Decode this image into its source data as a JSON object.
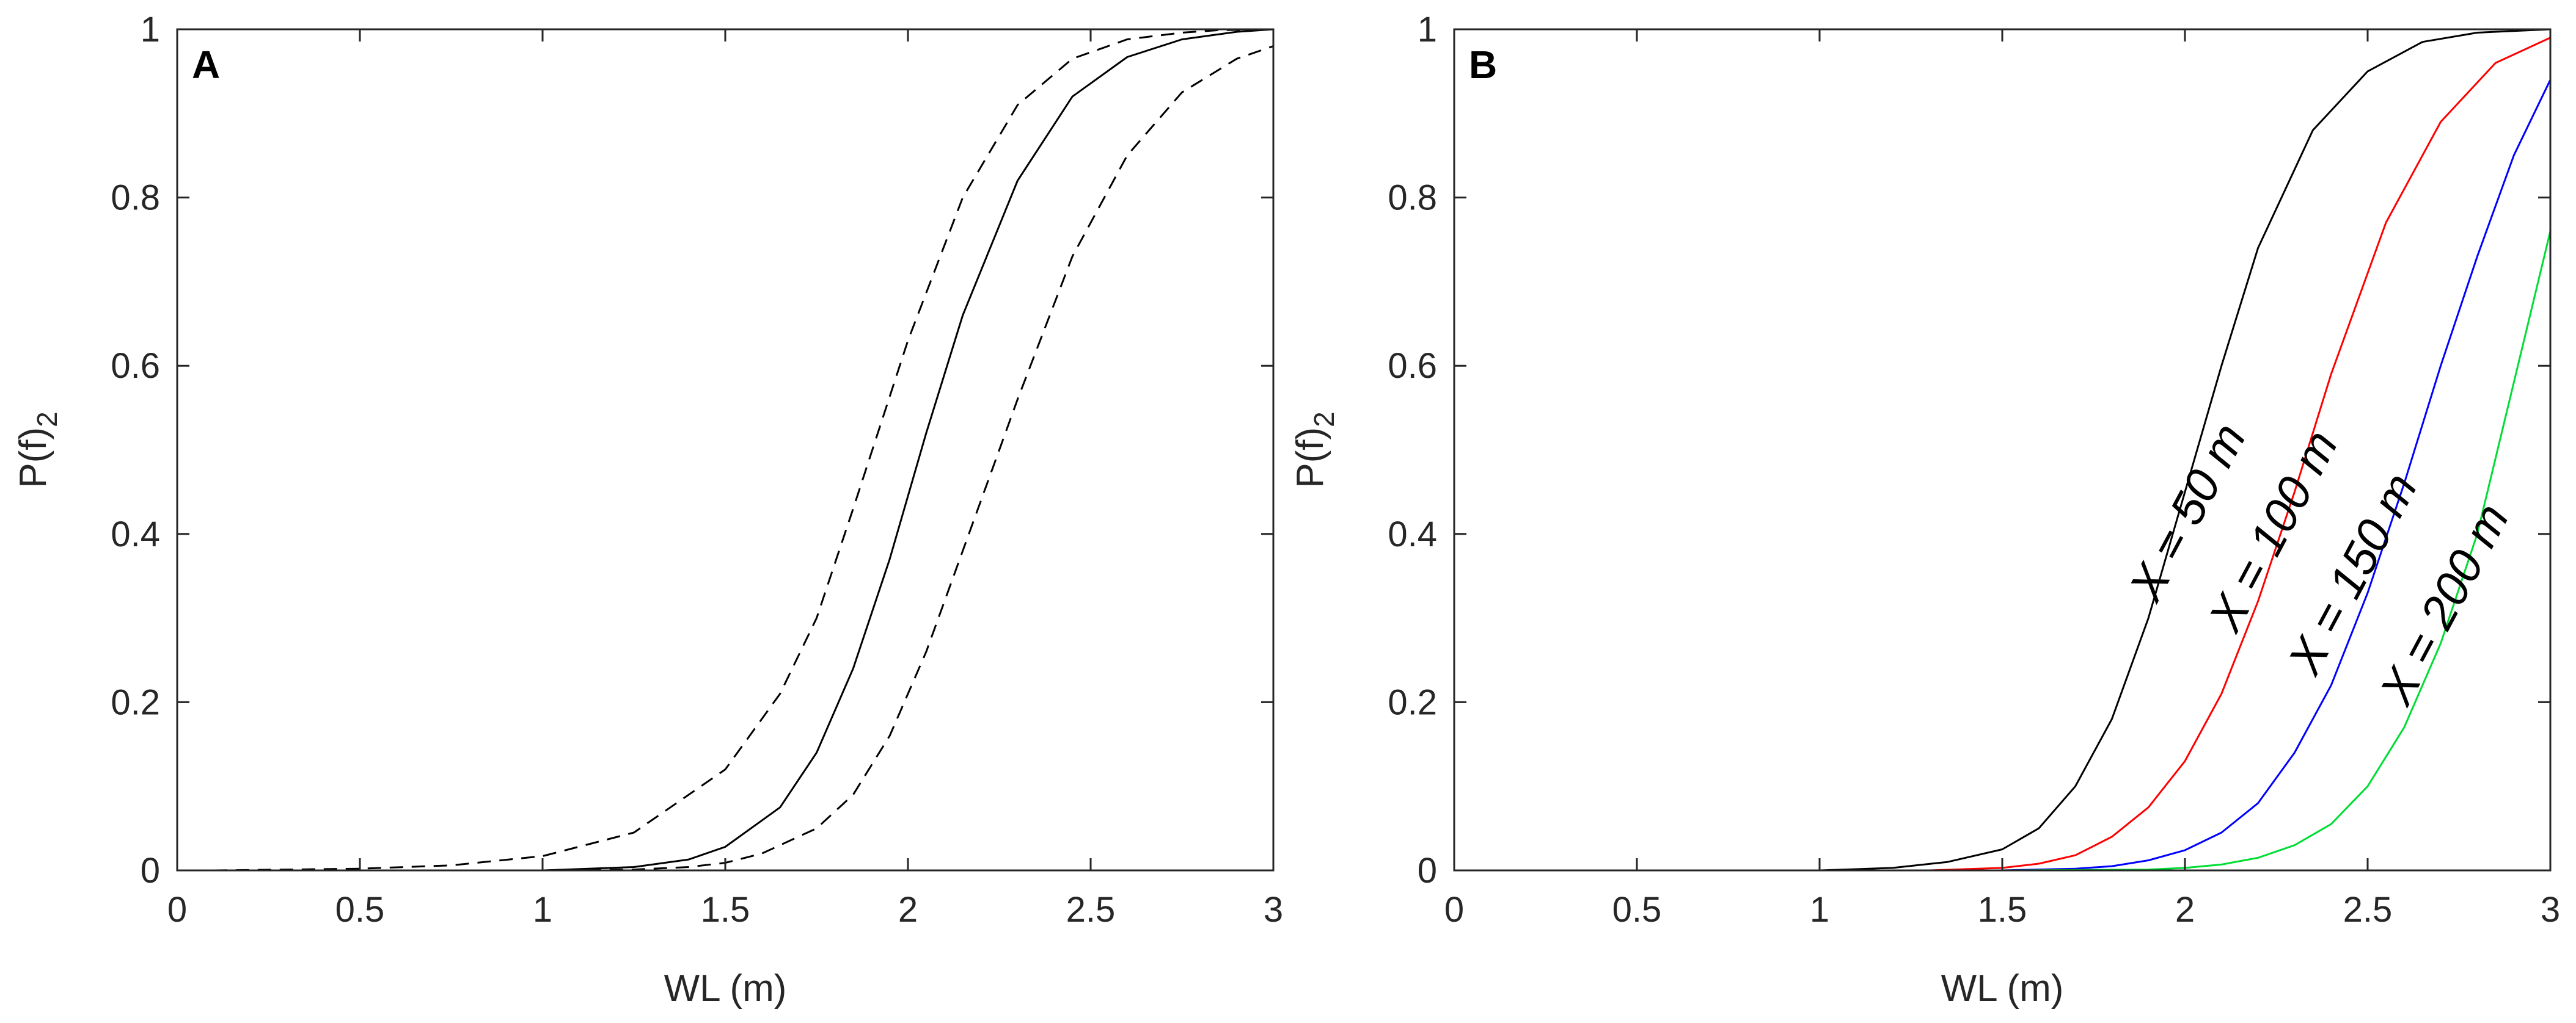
{
  "chart_data": [
    {
      "type": "line",
      "panel_label": "A",
      "xlabel": "WL (m)",
      "ylabel_main": "P(f)",
      "ylabel_sub": "2",
      "xlim": [
        0,
        3
      ],
      "ylim": [
        0,
        1
      ],
      "xticks": [
        0,
        0.5,
        1,
        1.5,
        2,
        2.5,
        3
      ],
      "xtick_labels": [
        "0",
        "0.5",
        "1",
        "1.5",
        "2",
        "2.5",
        "3"
      ],
      "yticks": [
        0,
        0.2,
        0.4,
        0.6,
        0.8,
        1
      ],
      "ytick_labels": [
        "0",
        "0.2",
        "0.4",
        "0.6",
        "0.8",
        "1"
      ],
      "grid": false,
      "series": [
        {
          "style": "dashed",
          "color": "#000000",
          "x": [
            0.1,
            0.5,
            0.75,
            1.0,
            1.25,
            1.5,
            1.65,
            1.75,
            1.85,
            2.0,
            2.15,
            2.3,
            2.45,
            2.6,
            2.75,
            2.85,
            3.0
          ],
          "y": [
            0.0,
            0.002,
            0.006,
            0.017,
            0.045,
            0.12,
            0.21,
            0.3,
            0.43,
            0.63,
            0.8,
            0.91,
            0.965,
            0.988,
            0.996,
            0.999,
            1.0
          ]
        },
        {
          "style": "solid",
          "color": "#000000",
          "x": [
            0.1,
            0.5,
            1.0,
            1.25,
            1.4,
            1.5,
            1.65,
            1.75,
            1.85,
            1.95,
            2.05,
            2.15,
            2.3,
            2.45,
            2.6,
            2.75,
            2.9,
            3.0
          ],
          "y": [
            0.0,
            0.0,
            0.0,
            0.004,
            0.013,
            0.028,
            0.075,
            0.14,
            0.24,
            0.37,
            0.52,
            0.66,
            0.82,
            0.92,
            0.967,
            0.988,
            0.997,
            1.0
          ]
        },
        {
          "style": "dashed",
          "color": "#000000",
          "x": [
            0.1,
            0.5,
            1.0,
            1.25,
            1.4,
            1.5,
            1.6,
            1.75,
            1.85,
            1.95,
            2.05,
            2.15,
            2.3,
            2.45,
            2.6,
            2.75,
            2.9,
            3.0
          ],
          "y": [
            0.0,
            0.0,
            0.0,
            0.001,
            0.004,
            0.009,
            0.02,
            0.05,
            0.09,
            0.16,
            0.26,
            0.38,
            0.56,
            0.73,
            0.85,
            0.925,
            0.965,
            0.98
          ]
        }
      ]
    },
    {
      "type": "line",
      "panel_label": "B",
      "xlabel": "WL (m)",
      "ylabel_main": "P(f)",
      "ylabel_sub": "2",
      "xlim": [
        0,
        3
      ],
      "ylim": [
        0,
        1
      ],
      "xticks": [
        0,
        0.5,
        1,
        1.5,
        2,
        2.5,
        3
      ],
      "xtick_labels": [
        "0",
        "0.5",
        "1",
        "1.5",
        "2",
        "2.5",
        "3"
      ],
      "yticks": [
        0,
        0.2,
        0.4,
        0.6,
        0.8,
        1
      ],
      "ytick_labels": [
        "0",
        "0.2",
        "0.4",
        "0.6",
        "0.8",
        "1"
      ],
      "grid": false,
      "series": [
        {
          "name": "X = 50 m",
          "style": "solid",
          "color": "#000000",
          "x": [
            0.1,
            0.5,
            1.0,
            1.2,
            1.35,
            1.5,
            1.6,
            1.7,
            1.8,
            1.9,
            2.0,
            2.1,
            2.2,
            2.35,
            2.5,
            2.65,
            2.8,
            3.0
          ],
          "y": [
            0.0,
            0.0,
            0.0,
            0.003,
            0.01,
            0.025,
            0.05,
            0.1,
            0.18,
            0.3,
            0.45,
            0.6,
            0.74,
            0.88,
            0.95,
            0.985,
            0.996,
            1.0
          ]
        },
        {
          "name": "X = 100 m",
          "style": "solid",
          "color": "#ff0000",
          "x": [
            0.1,
            0.5,
            1.0,
            1.3,
            1.5,
            1.6,
            1.7,
            1.8,
            1.9,
            2.0,
            2.1,
            2.2,
            2.3,
            2.4,
            2.55,
            2.7,
            2.85,
            3.0
          ],
          "y": [
            0.0,
            0.0,
            0.0,
            0.0,
            0.003,
            0.008,
            0.018,
            0.04,
            0.075,
            0.13,
            0.21,
            0.32,
            0.45,
            0.59,
            0.77,
            0.89,
            0.96,
            0.99
          ]
        },
        {
          "name": "X = 150 m",
          "style": "solid",
          "color": "#0000ff",
          "x": [
            0.1,
            0.5,
            1.0,
            1.5,
            1.7,
            1.8,
            1.9,
            2.0,
            2.1,
            2.2,
            2.3,
            2.4,
            2.5,
            2.6,
            2.7,
            2.8,
            2.9,
            3.0
          ],
          "y": [
            0.0,
            0.0,
            0.0,
            0.0,
            0.002,
            0.005,
            0.012,
            0.024,
            0.045,
            0.08,
            0.14,
            0.22,
            0.33,
            0.46,
            0.6,
            0.73,
            0.85,
            0.94
          ]
        },
        {
          "name": "X = 200 m",
          "style": "solid",
          "color": "#00dd33",
          "x": [
            0.1,
            0.5,
            1.0,
            1.5,
            1.9,
            2.0,
            2.1,
            2.2,
            2.3,
            2.4,
            2.5,
            2.6,
            2.7,
            2.8,
            2.9,
            3.0
          ],
          "y": [
            0.0,
            0.0,
            0.0,
            0.0,
            0.001,
            0.003,
            0.007,
            0.015,
            0.03,
            0.055,
            0.1,
            0.17,
            0.27,
            0.4,
            0.58,
            0.76
          ]
        }
      ]
    }
  ]
}
